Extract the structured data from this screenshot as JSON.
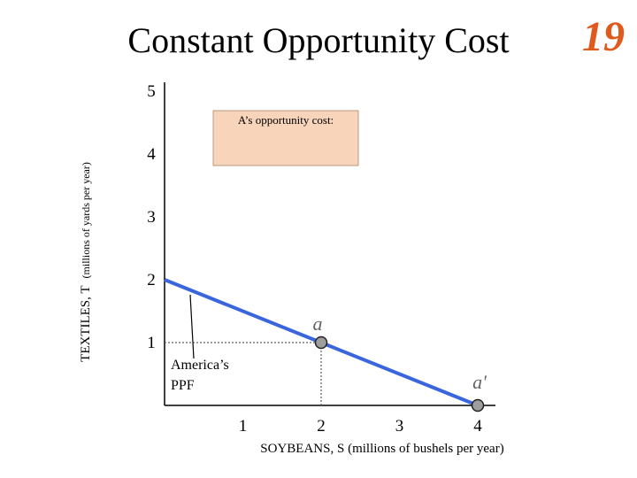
{
  "slide": {
    "title": "Constant Opportunity Cost",
    "number": "19"
  },
  "colors": {
    "ppf_line": "#3a66dd",
    "point_fill": "#9e9e9e",
    "callout_fill": "#f7d4ba",
    "number_color": "#e05a1e"
  },
  "chart_data": {
    "type": "line",
    "xlabel": "SOYBEANS, S  (millions of bushels per year)",
    "ylabel_main": "TEXTILES, T",
    "ylabel_units": "(millions of yards per year)",
    "xlim": [
      0,
      4.3
    ],
    "ylim": [
      0,
      5
    ],
    "x_ticks": [
      1,
      2,
      3,
      4
    ],
    "y_ticks": [
      1,
      2,
      3,
      4,
      5
    ],
    "series": [
      {
        "name": "America’s PPF",
        "x": [
          0,
          4
        ],
        "y": [
          2,
          0
        ]
      }
    ],
    "points": [
      {
        "label": "a",
        "x": 2,
        "y": 1
      },
      {
        "label": "a'",
        "x": 4,
        "y": 0
      }
    ],
    "guides": [
      {
        "from": [
          0,
          1
        ],
        "to": [
          2,
          1
        ]
      },
      {
        "from": [
          2,
          0
        ],
        "to": [
          2,
          1
        ]
      }
    ],
    "ppf_label": [
      "America’s",
      "PPF"
    ],
    "callout": {
      "text": "A’s  opportunity cost:"
    }
  }
}
